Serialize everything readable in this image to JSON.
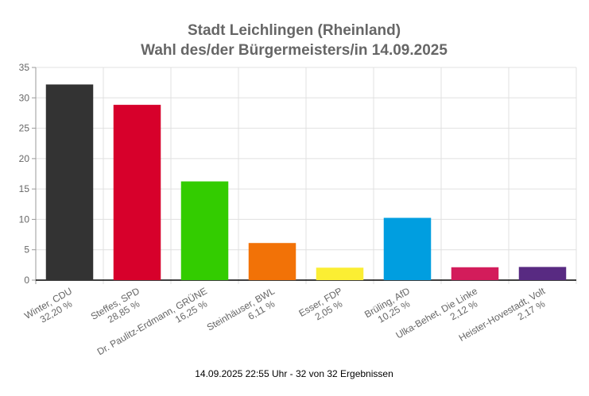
{
  "chart_data": {
    "type": "bar",
    "title": [
      "Stadt Leichlingen (Rheinland)",
      "Wahl des/der Bürgermeisters/in 14.09.2025"
    ],
    "categories": [
      "Winter, CDU",
      "Steffes, SPD",
      "Dr. Paulitz-Erdmann, GRÜNE",
      "Steinhäuser, BWL",
      "Esser, FDP",
      "Brüling, AfD",
      "Ulka-Behet, Die Linke",
      "Heister-Hovestadt, Volt"
    ],
    "value_labels": [
      "32,20 %",
      "28,85 %",
      "16,25 %",
      "6,11 %",
      "2,05 %",
      "10,25 %",
      "2,12 %",
      "2,17 %"
    ],
    "values": [
      32.2,
      28.85,
      16.25,
      6.11,
      2.05,
      10.25,
      2.12,
      2.17
    ],
    "colors": [
      "#333333",
      "#d7002b",
      "#33cc00",
      "#f27207",
      "#fbee33",
      "#009ee0",
      "#d31c5b",
      "#582a82"
    ],
    "ylim": [
      0,
      35
    ],
    "yticks": [
      0,
      5,
      10,
      15,
      20,
      25,
      30,
      35
    ],
    "grid": true,
    "xlabel": "",
    "ylabel": "",
    "footer": "14.09.2025 22:55 Uhr - 32 von 32 Ergebnissen"
  }
}
